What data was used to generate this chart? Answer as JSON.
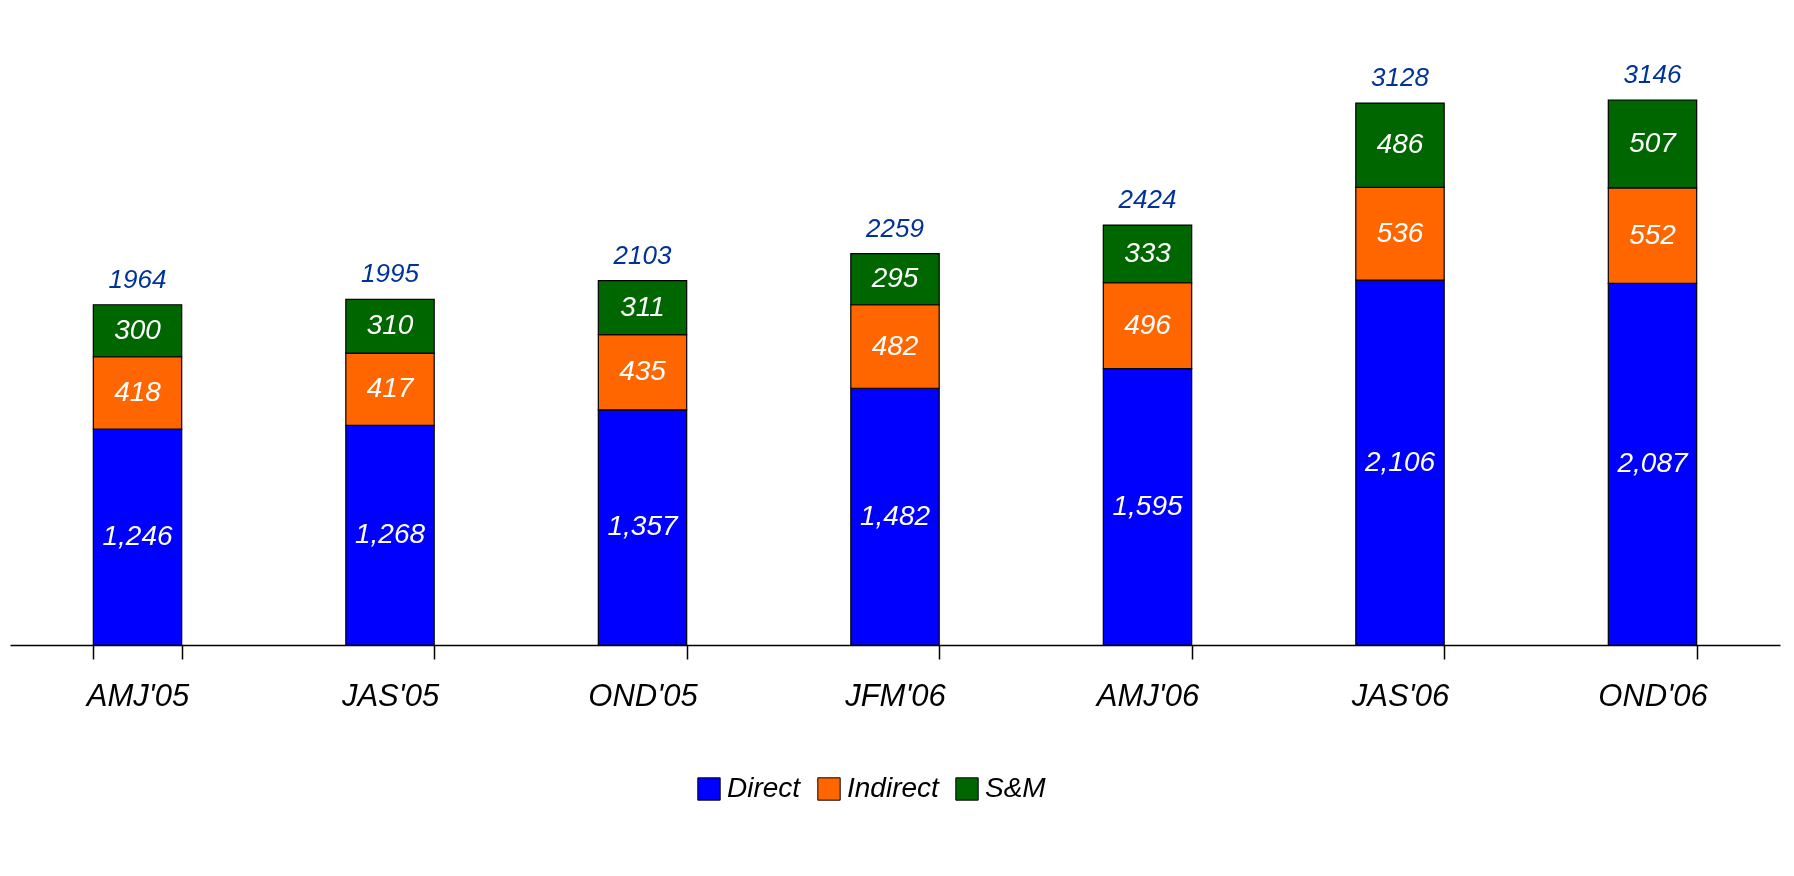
{
  "chart_data": {
    "type": "bar",
    "stacked": true,
    "legend": "bottom",
    "categories": [
      "AMJ'05",
      "JAS'05",
      "OND'05",
      "JFM'06",
      "AMJ'06",
      "JAS'06",
      "OND'06"
    ],
    "series": [
      {
        "name": "Direct",
        "color": "#0000ff",
        "values": [
          1246,
          1268,
          1357,
          1482,
          1595,
          2106,
          2087
        ],
        "value_labels": [
          "1,246",
          "1,268",
          "1,357",
          "1,482",
          "1,595",
          "2,106",
          "2,087"
        ]
      },
      {
        "name": "Indirect",
        "color": "#ff6600",
        "values": [
          418,
          417,
          435,
          482,
          496,
          536,
          552
        ],
        "value_labels": [
          "418",
          "417",
          "435",
          "482",
          "496",
          "536",
          "552"
        ]
      },
      {
        "name": "S&M",
        "color": "#006600",
        "values": [
          300,
          310,
          311,
          295,
          333,
          486,
          507
        ],
        "value_labels": [
          "300",
          "310",
          "311",
          "295",
          "333",
          "486",
          "507"
        ]
      }
    ],
    "totals": [
      "1964",
      "1995",
      "2103",
      "2259",
      "2424",
      "3128",
      "3146"
    ]
  }
}
